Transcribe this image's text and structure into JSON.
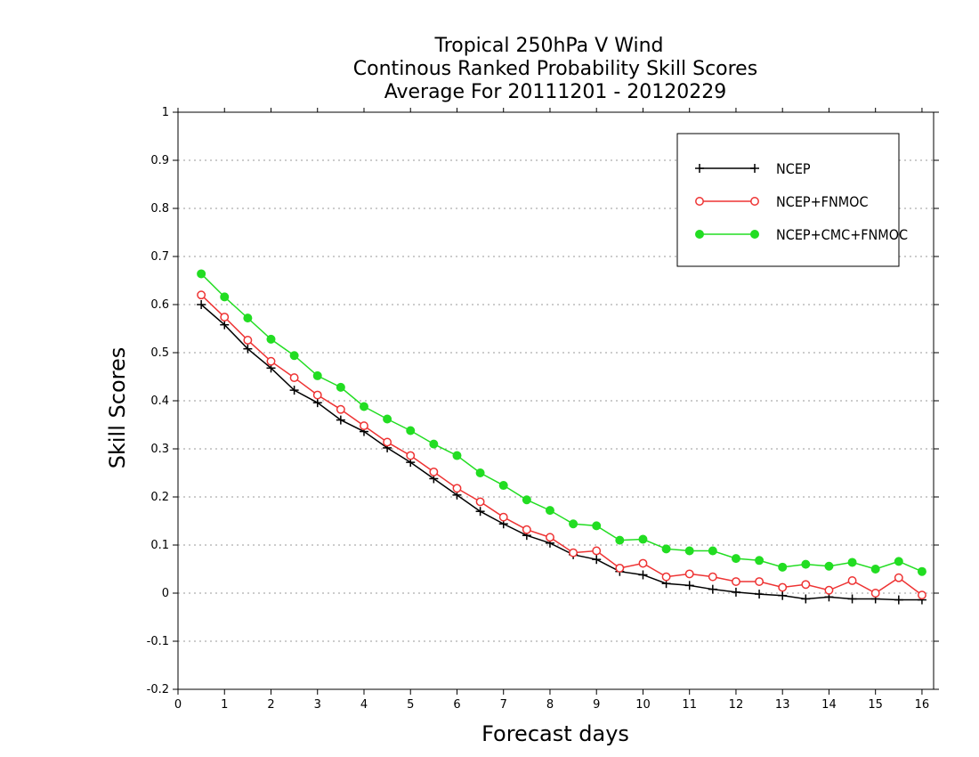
{
  "chart_data": {
    "type": "line",
    "title": [
      "Tropical 250hPa V Wind",
      "Continous Ranked Probability Skill Scores",
      "Average For 20111201 - 20120229"
    ],
    "xlabel": "Forecast days",
    "ylabel": "Skill Scores",
    "xlim": [
      0,
      16.25
    ],
    "ylim": [
      -0.2,
      1
    ],
    "x_ticks": [
      "0",
      "1",
      "2",
      "3",
      "4",
      "5",
      "6",
      "7",
      "8",
      "9",
      "10",
      "11",
      "12",
      "13",
      "14",
      "15",
      "16"
    ],
    "y_ticks": [
      "1",
      "0.9",
      "0.8",
      "0.7",
      "0.6",
      "0.5",
      "0.4",
      "0.3",
      "0.2",
      "0.1",
      "0",
      "-0.1",
      "-0.2"
    ],
    "grid": "horizontal-dotted",
    "legend_position": "top-right",
    "x": [
      0.5,
      1,
      1.5,
      2,
      2.5,
      3,
      3.5,
      4,
      4.5,
      5,
      5.5,
      6,
      6.5,
      7,
      7.5,
      8,
      8.5,
      9,
      9.5,
      10,
      10.5,
      11,
      11.5,
      12,
      12.5,
      13,
      13.5,
      14,
      14.5,
      15,
      15.5,
      16
    ],
    "series": [
      {
        "name": "NCEP",
        "color": "#000000",
        "marker": "plus",
        "values": [
          0.6,
          0.558,
          0.508,
          0.468,
          0.422,
          0.396,
          0.36,
          0.336,
          0.302,
          0.272,
          0.238,
          0.204,
          0.17,
          0.144,
          0.12,
          0.104,
          0.08,
          0.07,
          0.045,
          0.038,
          0.02,
          0.016,
          0.008,
          0.002,
          -0.002,
          -0.005,
          -0.012,
          -0.008,
          -0.012,
          -0.012,
          -0.014,
          -0.014
        ]
      },
      {
        "name": "NCEP+FNMOC",
        "color": "#ee3333",
        "marker": "open-circle",
        "values": [
          0.62,
          0.574,
          0.526,
          0.482,
          0.448,
          0.412,
          0.382,
          0.348,
          0.314,
          0.286,
          0.252,
          0.218,
          0.19,
          0.158,
          0.132,
          0.116,
          0.084,
          0.088,
          0.052,
          0.062,
          0.034,
          0.04,
          0.034,
          0.024,
          0.024,
          0.012,
          0.018,
          0.006,
          0.026,
          0.0,
          0.032,
          -0.004
        ]
      },
      {
        "name": "NCEP+CMC+FNMOC",
        "color": "#22dd22",
        "marker": "filled-circle",
        "values": [
          0.664,
          0.616,
          0.572,
          0.528,
          0.494,
          0.452,
          0.428,
          0.388,
          0.362,
          0.338,
          0.31,
          0.286,
          0.25,
          0.224,
          0.194,
          0.172,
          0.144,
          0.14,
          0.11,
          0.112,
          0.092,
          0.088,
          0.088,
          0.072,
          0.068,
          0.054,
          0.06,
          0.056,
          0.064,
          0.05,
          0.066,
          0.045
        ]
      }
    ]
  }
}
